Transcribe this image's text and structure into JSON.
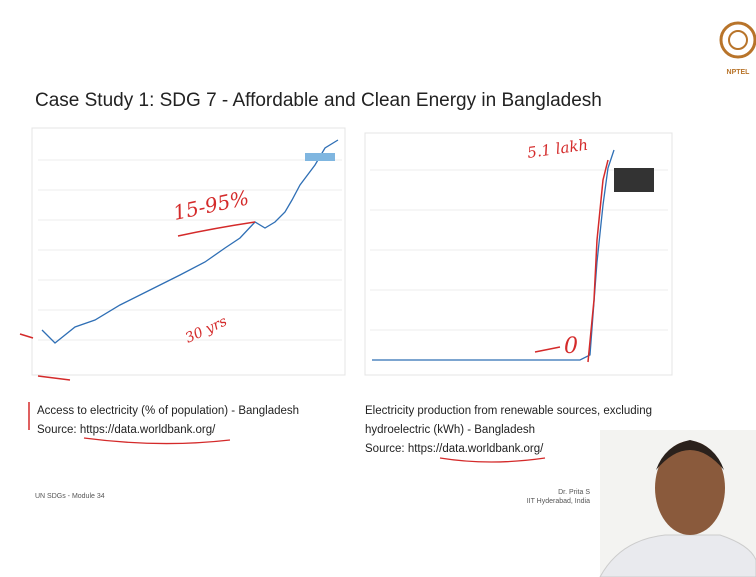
{
  "header": {
    "title": "Case Study 1: SDG 7 - Affordable and Clean Energy in Bangladesh",
    "logo_text": "NPTEL"
  },
  "figures": [
    {
      "caption": [
        "Access to electricity (% of population) - Bangladesh",
        "Source: https://data.worldbank.org/"
      ],
      "annotations": [
        "15-95%",
        "30 yrs"
      ]
    },
    {
      "caption": [
        "Electricity production from renewable sources, excluding",
        "hydroelectric (kWh) - Bangladesh",
        "Source: https://data.worldbank.org/"
      ],
      "annotations": [
        "5.1 lakh",
        "0"
      ]
    }
  ],
  "footer": {
    "module": "UN SDGs - Module 34",
    "presenter": "Dr. Prita S",
    "institute": "IIT Hyderabad, India"
  }
}
